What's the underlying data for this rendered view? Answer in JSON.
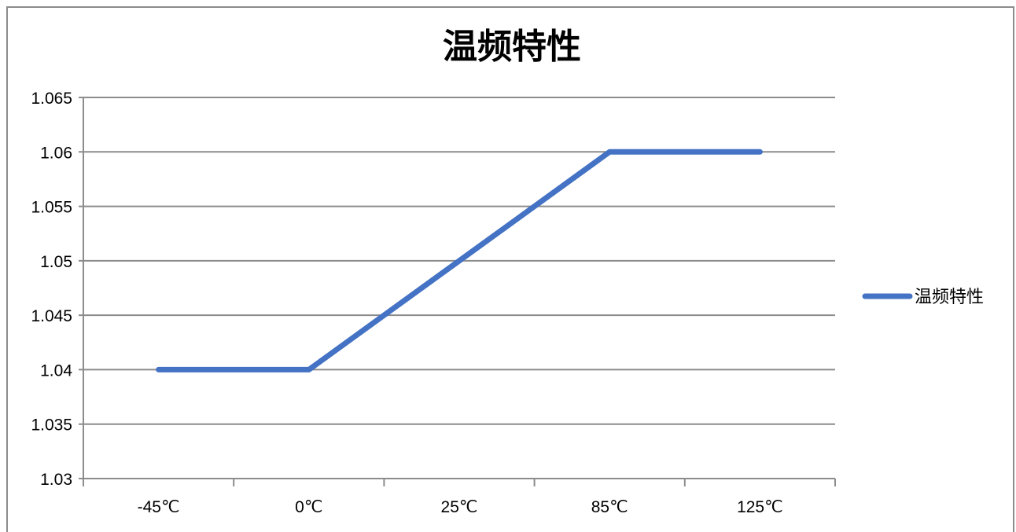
{
  "chart_data": {
    "type": "line",
    "title": "温频特性",
    "xlabel": "",
    "ylabel": "",
    "categories": [
      "-45℃",
      "0℃",
      "25℃",
      "85℃",
      "125℃"
    ],
    "series": [
      {
        "name": "温频特性",
        "values": [
          1.04,
          1.04,
          1.05,
          1.06,
          1.06
        ]
      }
    ],
    "ylim": [
      1.03,
      1.065
    ],
    "yticks": [
      "1.03",
      "1.035",
      "1.04",
      "1.045",
      "1.05",
      "1.055",
      "1.06",
      "1.065"
    ],
    "grid": true,
    "legend_position": "right",
    "colors": {
      "series": "#4472c4",
      "grid": "#8c8c8c",
      "axis": "#8c8c8c"
    }
  }
}
